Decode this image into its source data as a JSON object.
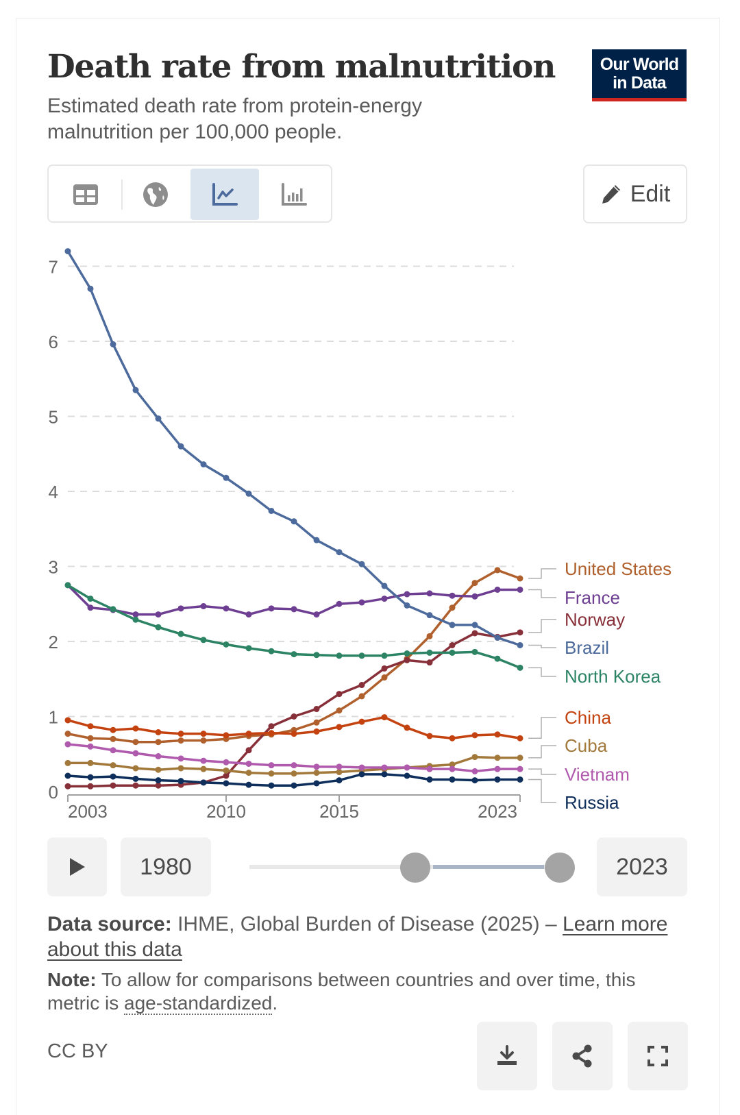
{
  "header": {
    "title": "Death rate from malnutrition",
    "subtitle": "Estimated death rate from protein-energy malnutrition per 100,000 people.",
    "logo_line1": "Our World",
    "logo_line2": "in Data"
  },
  "toolbar": {
    "tabs": [
      {
        "name": "table",
        "icon": "table-icon",
        "active": false
      },
      {
        "name": "map",
        "icon": "globe-icon",
        "active": false
      },
      {
        "name": "line-chart",
        "icon": "line-chart-icon",
        "active": true
      },
      {
        "name": "bar-chart",
        "icon": "bar-chart-icon",
        "active": false
      }
    ],
    "edit_label": "Edit"
  },
  "timeline": {
    "start_year": "1980",
    "end_year": "2023",
    "play_icon": "play-icon"
  },
  "footer": {
    "source_label": "Data source:",
    "source_text": " IHME, Global Burden of Disease (2025) – ",
    "source_link": "Learn more about this data",
    "note_label": "Note:",
    "note_text": " To allow for comparisons between countries and over time, this metric is ",
    "note_link": "age-standardized",
    "note_end": ".",
    "license": "CC BY",
    "buttons": [
      "download-icon",
      "share-icon",
      "fullscreen-icon"
    ]
  },
  "chart_data": {
    "type": "line",
    "title": "Death rate from malnutrition",
    "subtitle": "Estimated death rate from protein-energy malnutrition per 100,000 people.",
    "xlabel": "",
    "ylabel": "",
    "x": [
      2003,
      2004,
      2005,
      2006,
      2007,
      2008,
      2009,
      2010,
      2011,
      2012,
      2013,
      2014,
      2015,
      2016,
      2017,
      2018,
      2019,
      2020,
      2021,
      2022,
      2023
    ],
    "x_ticks": [
      2003,
      2010,
      2015,
      2023
    ],
    "y_ticks": [
      0,
      1,
      2,
      3,
      4,
      5,
      6,
      7
    ],
    "ylim": [
      0,
      7.2
    ],
    "grid": "horizontal dashed",
    "legend": "right, end-of-line labels",
    "series": [
      {
        "name": "United States",
        "color": "#b0602c",
        "values": [
          0.77,
          0.71,
          0.7,
          0.66,
          0.66,
          0.68,
          0.68,
          0.7,
          0.74,
          0.76,
          0.82,
          0.92,
          1.08,
          1.27,
          1.52,
          1.77,
          2.07,
          2.45,
          2.78,
          2.95,
          2.84
        ]
      },
      {
        "name": "France",
        "color": "#6d3e91",
        "values": [
          2.75,
          2.45,
          2.42,
          2.36,
          2.36,
          2.44,
          2.47,
          2.44,
          2.36,
          2.44,
          2.43,
          2.36,
          2.5,
          2.52,
          2.57,
          2.63,
          2.64,
          2.61,
          2.6,
          2.69,
          2.69
        ]
      },
      {
        "name": "Norway",
        "color": "#883039",
        "values": [
          0.07,
          0.07,
          0.08,
          0.08,
          0.08,
          0.09,
          0.12,
          0.21,
          0.55,
          0.87,
          1.0,
          1.1,
          1.3,
          1.42,
          1.64,
          1.75,
          1.72,
          1.95,
          2.11,
          2.06,
          2.12
        ]
      },
      {
        "name": "Brazil",
        "color": "#4c6a9c",
        "values": [
          7.2,
          6.7,
          5.96,
          5.35,
          4.97,
          4.6,
          4.36,
          4.18,
          3.97,
          3.74,
          3.6,
          3.35,
          3.19,
          3.03,
          2.74,
          2.48,
          2.35,
          2.22,
          2.22,
          2.05,
          1.95
        ]
      },
      {
        "name": "North Korea",
        "color": "#2c8465",
        "values": [
          2.75,
          2.57,
          2.43,
          2.29,
          2.19,
          2.1,
          2.02,
          1.96,
          1.91,
          1.87,
          1.83,
          1.82,
          1.81,
          1.81,
          1.81,
          1.84,
          1.85,
          1.85,
          1.86,
          1.77,
          1.65
        ]
      },
      {
        "name": "China",
        "color": "#c4420f",
        "values": [
          0.95,
          0.87,
          0.82,
          0.84,
          0.79,
          0.77,
          0.77,
          0.75,
          0.77,
          0.78,
          0.77,
          0.8,
          0.86,
          0.93,
          0.99,
          0.85,
          0.74,
          0.71,
          0.75,
          0.76,
          0.71
        ]
      },
      {
        "name": "Cuba",
        "color": "#a2793b",
        "values": [
          0.38,
          0.38,
          0.35,
          0.31,
          0.29,
          0.31,
          0.3,
          0.28,
          0.25,
          0.24,
          0.24,
          0.25,
          0.26,
          0.28,
          0.3,
          0.32,
          0.34,
          0.36,
          0.46,
          0.45,
          0.45
        ]
      },
      {
        "name": "Vietnam",
        "color": "#b05aae",
        "values": [
          0.63,
          0.6,
          0.55,
          0.51,
          0.47,
          0.44,
          0.41,
          0.39,
          0.37,
          0.35,
          0.35,
          0.33,
          0.33,
          0.32,
          0.32,
          0.32,
          0.3,
          0.3,
          0.27,
          0.3,
          0.3
        ]
      },
      {
        "name": "Russia",
        "color": "#0e2f5c",
        "values": [
          0.21,
          0.19,
          0.2,
          0.17,
          0.15,
          0.14,
          0.12,
          0.11,
          0.09,
          0.08,
          0.08,
          0.11,
          0.15,
          0.23,
          0.23,
          0.21,
          0.16,
          0.16,
          0.15,
          0.16,
          0.16
        ]
      }
    ]
  }
}
